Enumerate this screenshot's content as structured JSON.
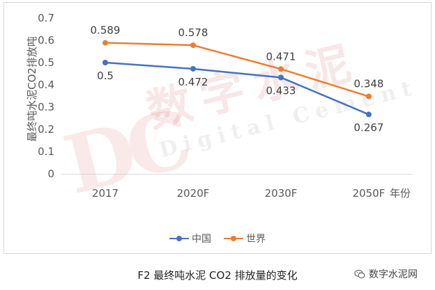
{
  "chart_data": {
    "type": "line",
    "categories": [
      "2017",
      "2020F",
      "2030F",
      "2050F"
    ],
    "xlabel": "年份",
    "ylabel": "最终吨水泥CO2排放吨",
    "ylim": [
      0,
      0.7
    ],
    "yticks": [
      "0",
      "0.1",
      "0.2",
      "0.3",
      "0.4",
      "0.5",
      "0.6",
      "0.7"
    ],
    "grid": false,
    "legend_position": "bottom",
    "series": [
      {
        "name": "中国",
        "values": [
          0.5,
          0.472,
          0.433,
          0.267
        ],
        "labels": [
          "0.5",
          "0.472",
          "0.433",
          "0.267"
        ],
        "color": "#4472c4",
        "label_side": "below"
      },
      {
        "name": "世界",
        "values": [
          0.589,
          0.578,
          0.471,
          0.348
        ],
        "labels": [
          "0.589",
          "0.578",
          "0.471",
          "0.348"
        ],
        "color": "#ed7d31",
        "label_side": "above"
      }
    ]
  },
  "caption": "F2  最终吨水泥 CO2 排放量的变化",
  "watermark": {
    "logo": "DC",
    "chinese": "数字水泥",
    "english": "Digital Cement"
  },
  "brand": {
    "name": "数字水泥网",
    "icon": "wechat-icon"
  }
}
